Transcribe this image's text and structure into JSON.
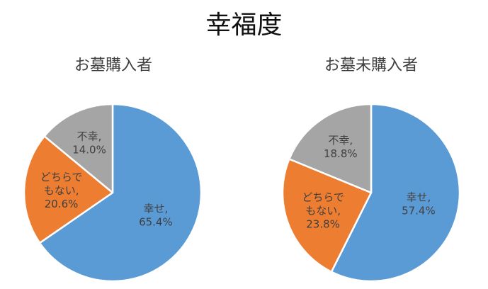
{
  "title": "幸福度",
  "colors": {
    "happy": "#5B9BD5",
    "neutral": "#ED7D31",
    "unhappy": "#A5A5A5"
  },
  "chart_data": [
    {
      "type": "pie",
      "title": "お墓購入者",
      "categories": [
        "幸せ",
        "どちらでもない",
        "不幸"
      ],
      "values": [
        65.4,
        20.6,
        14.0
      ],
      "labels": [
        {
          "lines": [
            "幸せ,",
            "65.4%"
          ]
        },
        {
          "lines": [
            "どちらで",
            "もない,",
            "20.6%"
          ]
        },
        {
          "lines": [
            "不幸,",
            "14.0%"
          ]
        }
      ]
    },
    {
      "type": "pie",
      "title": "お墓未購入者",
      "categories": [
        "幸せ",
        "どちらでもない",
        "不幸"
      ],
      "values": [
        57.4,
        23.8,
        18.8
      ],
      "labels": [
        {
          "lines": [
            "幸せ,",
            "57.4%"
          ]
        },
        {
          "lines": [
            "どちらで",
            "もない,",
            "23.8%"
          ]
        },
        {
          "lines": [
            "不幸,",
            "18.8%"
          ]
        }
      ]
    }
  ]
}
